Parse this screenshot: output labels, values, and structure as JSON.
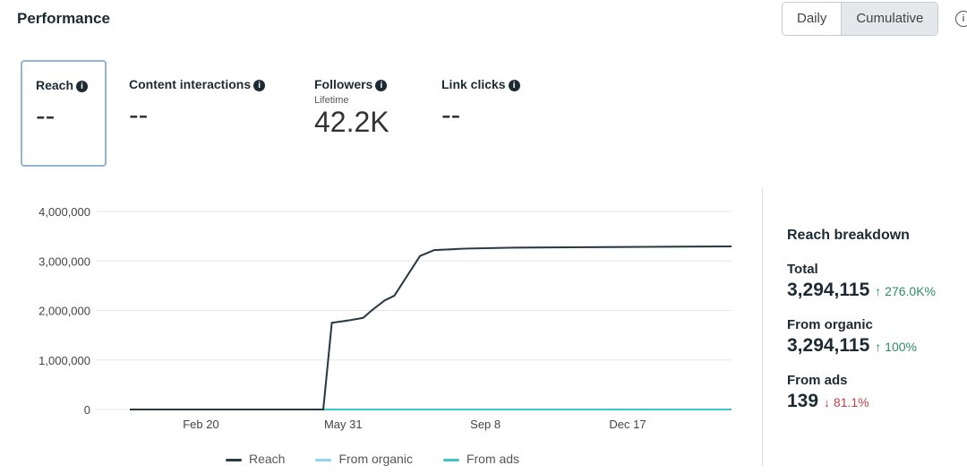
{
  "header": {
    "title": "Performance",
    "toggle": [
      "Daily",
      "Cumulative"
    ],
    "active": "Cumulative"
  },
  "metrics": [
    {
      "label": "Reach",
      "value": "--"
    },
    {
      "label": "Content interactions",
      "value": "--"
    },
    {
      "label": "Followers",
      "sub": "Lifetime",
      "value": "42.2K"
    },
    {
      "label": "Link clicks",
      "value": "--"
    }
  ],
  "breakdown": {
    "title": "Reach breakdown",
    "items": [
      {
        "label": "Total",
        "value": "3,294,115",
        "change": "↑ 276.0K%",
        "dir": "up"
      },
      {
        "label": "From organic",
        "value": "3,294,115",
        "change": "↑ 100%",
        "dir": "up"
      },
      {
        "label": "From ads",
        "value": "139",
        "change": "↓ 81.1%",
        "dir": "down"
      }
    ]
  },
  "chart_data": {
    "type": "line",
    "xlabel": "",
    "ylabel": "",
    "x_unit": "days since start",
    "xlim": [
      0,
      423
    ],
    "ylim": [
      0,
      4000000
    ],
    "xticks": [
      {
        "x": 50,
        "label": "Feb 20"
      },
      {
        "x": 150,
        "label": "May 31"
      },
      {
        "x": 250,
        "label": "Sep 8"
      },
      {
        "x": 350,
        "label": "Dec 17"
      }
    ],
    "yticks": [
      {
        "y": 0,
        "label": "0"
      },
      {
        "y": 1000000,
        "label": "1,000,000"
      },
      {
        "y": 2000000,
        "label": "2,000,000"
      },
      {
        "y": 3000000,
        "label": "3,000,000"
      },
      {
        "y": 4000000,
        "label": "4,000,000"
      }
    ],
    "legend_position": "bottom",
    "series": [
      {
        "name": "From organic",
        "color": "#8fd3f4",
        "x": [
          0,
          136,
          142,
          154,
          164,
          170,
          179,
          186,
          195,
          204,
          214,
          236,
          270,
          423
        ],
        "y": [
          0,
          0,
          1750000,
          1800000,
          1850000,
          2000000,
          2200000,
          2300000,
          2700000,
          3100000,
          3220000,
          3250000,
          3270000,
          3294115
        ]
      },
      {
        "name": "From ads",
        "color": "#3cc6c6",
        "x": [
          0,
          423
        ],
        "y": [
          0,
          139
        ]
      },
      {
        "name": "Reach",
        "color": "#2b3a42",
        "x": [
          0,
          136,
          142,
          154,
          164,
          170,
          179,
          186,
          195,
          204,
          214,
          236,
          270,
          423
        ],
        "y": [
          0,
          0,
          1750000,
          1800000,
          1850000,
          2000000,
          2200000,
          2300000,
          2700000,
          3100000,
          3220000,
          3250000,
          3270000,
          3294115
        ]
      }
    ]
  }
}
